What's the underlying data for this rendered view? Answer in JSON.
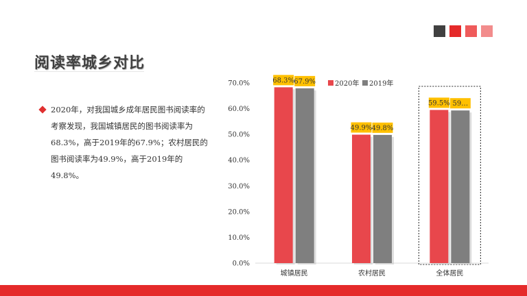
{
  "header": {
    "title": "阅读率城乡对比",
    "deco_colors": [
      "#404040",
      "#e52a2a",
      "#ef5b5b",
      "#f28c8c"
    ]
  },
  "description": {
    "bullet_color": "#e03030",
    "text": "2020年，对我国城乡成年居民图书阅读率的考察发现，我国城镇居民的图书阅读率为68.3%，高于2019年的67.9%；农村居民的图书阅读率为49.9%，高于2019年的49.8%。"
  },
  "chart_data": {
    "type": "bar",
    "categories": [
      "城镇居民",
      "农村居民",
      "全体居民"
    ],
    "series": [
      {
        "name": "2020年",
        "color": "#e8474c",
        "values": [
          68.3,
          49.9,
          59.5
        ],
        "labels": [
          "68.3%",
          "49.9%",
          "59.5%"
        ]
      },
      {
        "name": "2019年",
        "color": "#7f7f7f",
        "values": [
          67.9,
          49.8,
          59.3
        ],
        "labels": [
          "67.9%",
          "49.8%",
          "59…"
        ]
      }
    ],
    "ylim": [
      0,
      70
    ],
    "yticks": [
      "0.0%",
      "10.0%",
      "20.0%",
      "30.0%",
      "40.0%",
      "50.0%",
      "60.0%",
      "70.0%"
    ],
    "label_bg": "#ffc000",
    "legend_position": "top",
    "highlighted_category": "全体居民",
    "gridlines": false
  }
}
